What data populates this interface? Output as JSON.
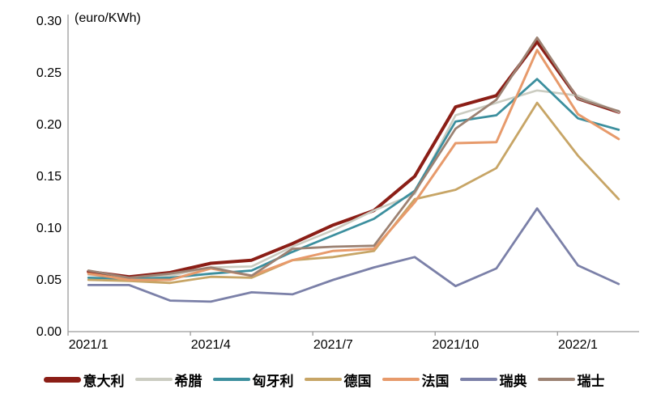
{
  "chart": {
    "unit_label": "(euro/KWh)"
  },
  "chart_data": {
    "type": "line",
    "title": "",
    "unit_label": "(euro/KWh)",
    "xlabel": "",
    "ylabel": "euro/KWh",
    "x_categories": [
      "2021/1",
      "2021/2",
      "2021/3",
      "2021/4",
      "2021/5",
      "2021/6",
      "2021/7",
      "2021/8",
      "2021/9",
      "2021/10",
      "2021/11",
      "2021/12",
      "2022/1",
      "2022/2"
    ],
    "x_tick_labels": [
      "2021/1",
      "2021/4",
      "2021/7",
      "2021/10",
      "2022/1"
    ],
    "x_tick_category_indexes": [
      0,
      3,
      6,
      9,
      12
    ],
    "y_tick_labels": [
      "0.00",
      "0.05",
      "0.10",
      "0.15",
      "0.20",
      "0.25",
      "0.30"
    ],
    "y_tick_values": [
      0.0,
      0.05,
      0.1,
      0.15,
      0.2,
      0.25,
      0.3
    ],
    "ylim": [
      0,
      0.3
    ],
    "grid": false,
    "legend_position": "bottom",
    "axis_color": "#9b9b9b",
    "text_color": "#000000",
    "series": [
      {
        "name": "意大利",
        "name_en": "italy",
        "color": "#8b1e16",
        "line_width": 4,
        "values": [
          0.058,
          0.053,
          0.057,
          0.066,
          0.069,
          0.085,
          0.103,
          0.117,
          0.15,
          0.217,
          0.228,
          0.28,
          0.225,
          0.212
        ]
      },
      {
        "name": "希腊",
        "name_en": "greece",
        "color": "#cbccc1",
        "line_width": 2.6,
        "values": [
          0.055,
          0.051,
          0.054,
          0.062,
          0.063,
          0.082,
          0.098,
          0.117,
          0.133,
          0.209,
          0.221,
          0.233,
          0.228,
          0.212
        ]
      },
      {
        "name": "匈牙利",
        "name_en": "hungary",
        "color": "#3c8f9e",
        "line_width": 2.8,
        "values": [
          0.052,
          0.051,
          0.052,
          0.056,
          0.059,
          0.077,
          0.093,
          0.109,
          0.136,
          0.203,
          0.209,
          0.244,
          0.206,
          0.195
        ]
      },
      {
        "name": "德国",
        "name_en": "germany",
        "color": "#c7a566",
        "line_width": 2.8,
        "values": [
          0.05,
          0.049,
          0.047,
          0.053,
          0.052,
          0.069,
          0.072,
          0.078,
          0.128,
          0.137,
          0.158,
          0.221,
          0.17,
          0.128
        ]
      },
      {
        "name": "法国",
        "name_en": "france",
        "color": "#e79a6b",
        "line_width": 3,
        "values": [
          0.056,
          0.05,
          0.05,
          0.061,
          0.054,
          0.069,
          0.078,
          0.08,
          0.125,
          0.182,
          0.183,
          0.272,
          0.21,
          0.186
        ]
      },
      {
        "name": "瑞典",
        "name_en": "sweden",
        "color": "#7b80a8",
        "line_width": 2.8,
        "values": [
          0.045,
          0.045,
          0.03,
          0.029,
          0.038,
          0.036,
          0.05,
          0.062,
          0.072,
          0.044,
          0.061,
          0.119,
          0.064,
          0.046
        ]
      },
      {
        "name": "瑞士",
        "name_en": "switzerland",
        "color": "#9c8273",
        "line_width": 2.8,
        "values": [
          0.059,
          0.052,
          0.056,
          0.062,
          0.054,
          0.08,
          0.082,
          0.083,
          0.135,
          0.196,
          0.224,
          0.284,
          0.225,
          0.213
        ]
      }
    ]
  }
}
